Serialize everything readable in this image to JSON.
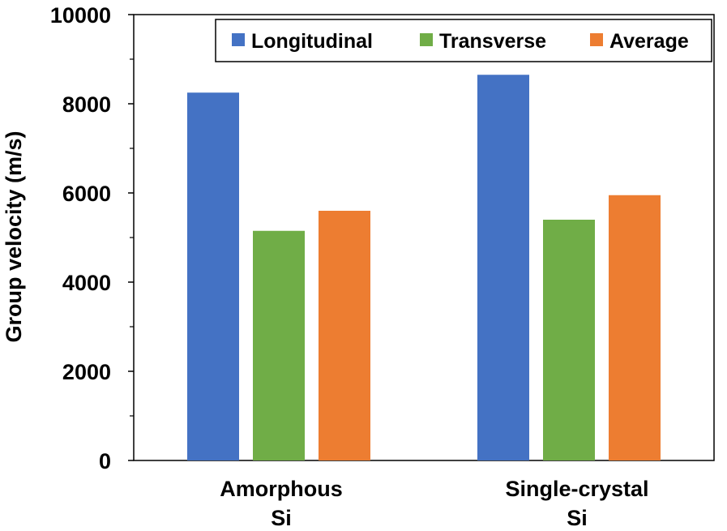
{
  "chart_data": {
    "type": "bar",
    "title": "",
    "xlabel": "",
    "ylabel": "Group velocity (m/s)",
    "ylim": [
      0,
      10000
    ],
    "yticks": [
      0,
      2000,
      4000,
      6000,
      8000,
      10000
    ],
    "ytick_labels": [
      "0",
      "2000",
      "4000",
      "6000",
      "8000",
      "10000"
    ],
    "categories": [
      {
        "line1": "Amorphous",
        "line2": "Si"
      },
      {
        "line1": "Single-crystal",
        "line2": "Si"
      }
    ],
    "series": [
      {
        "name": "Longitudinal",
        "color": "#4472C4",
        "values": [
          8250,
          8650
        ]
      },
      {
        "name": "Transverse",
        "color": "#70AD47",
        "values": [
          5150,
          5400
        ]
      },
      {
        "name": "Average",
        "color": "#ED7D31",
        "values": [
          5600,
          5950
        ]
      }
    ],
    "legend_position": "top-right",
    "grid": false
  }
}
